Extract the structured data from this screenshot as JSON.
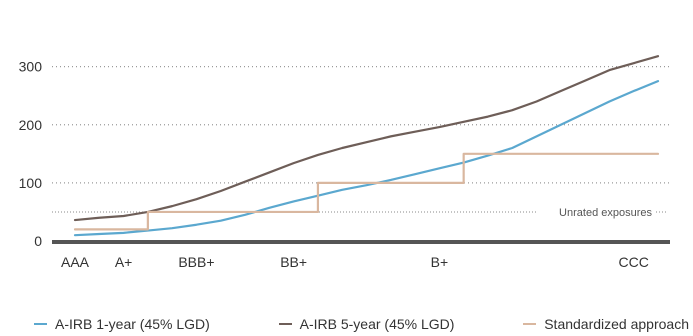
{
  "chart_data": {
    "type": "line",
    "title": "",
    "xlabel": "",
    "ylabel": "",
    "ylim": [
      0,
      320
    ],
    "y_ticks": [
      0,
      100,
      200,
      300
    ],
    "grid": "dotted-horizontal",
    "categories": [
      "AAA",
      "",
      "A+",
      "",
      "",
      "BBB+",
      "",
      "",
      "",
      "BB+",
      "",
      "",
      "",
      "",
      "",
      "B+",
      "",
      "",
      "",
      "",
      "",
      "",
      "",
      "CCC",
      ""
    ],
    "tick_labels": [
      {
        "index": 0,
        "label": "AAA"
      },
      {
        "index": 2,
        "label": "A+"
      },
      {
        "index": 5,
        "label": "BBB+"
      },
      {
        "index": 9,
        "label": "BB+"
      },
      {
        "index": 15,
        "label": "B+"
      },
      {
        "index": 23,
        "label": "CCC"
      }
    ],
    "series": [
      {
        "name": "A-IRB 1-year (45% LGD)",
        "color": "#5ba8cf",
        "style": "line",
        "values": [
          10,
          12,
          14,
          18,
          22,
          28,
          35,
          45,
          57,
          68,
          78,
          88,
          96,
          105,
          115,
          125,
          135,
          147,
          160,
          180,
          200,
          220,
          240,
          258,
          275
        ]
      },
      {
        "name": "A-IRB 5-year (45% LGD)",
        "color": "#6e5e58",
        "style": "line",
        "values": [
          36,
          40,
          43,
          50,
          60,
          72,
          86,
          102,
          118,
          134,
          148,
          160,
          170,
          180,
          188,
          196,
          205,
          214,
          225,
          240,
          258,
          276,
          294,
          306,
          318
        ]
      },
      {
        "name": "Standardized approach",
        "color": "#d9b79f",
        "style": "step",
        "values": [
          20,
          20,
          20,
          50,
          50,
          50,
          50,
          50,
          50,
          50,
          100,
          100,
          100,
          100,
          100,
          100,
          150,
          150,
          150,
          150,
          150,
          150,
          150,
          150,
          150
        ]
      }
    ],
    "annotations": [
      {
        "type": "horizontal-line",
        "y": 50,
        "style": "dotted",
        "label": "Unrated exposures"
      }
    ]
  }
}
